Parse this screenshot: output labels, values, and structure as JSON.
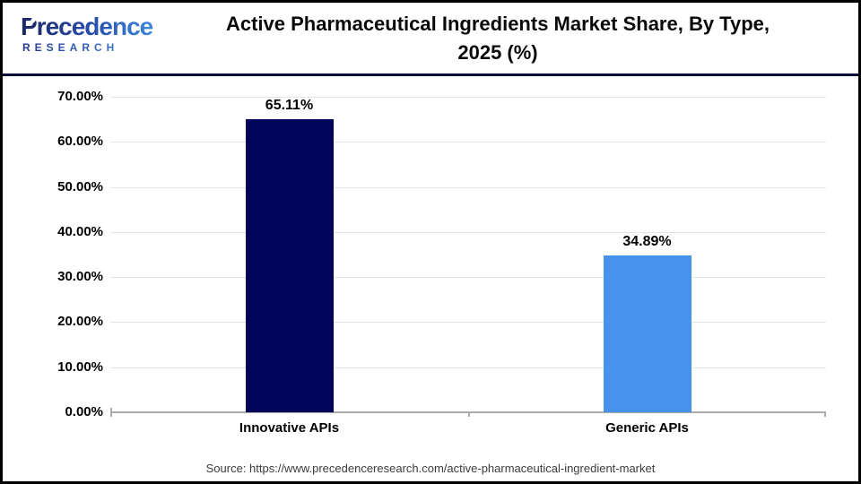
{
  "header": {
    "logo": {
      "brand": "Precedence",
      "sub": "RESEARCH"
    },
    "title_line1": "Active Pharmaceutical Ingredients Market Share, By Type,",
    "title_line2": "2025 (%)"
  },
  "chart_data": {
    "type": "bar",
    "title": "Active Pharmaceutical Ingredients Market Share, By Type, 2025 (%)",
    "categories": [
      "Innovative APIs",
      "Generic APIs"
    ],
    "values": [
      65.11,
      34.89
    ],
    "value_labels": [
      "65.11%",
      "34.89%"
    ],
    "bar_colors": [
      "#03055a",
      "#4793ec"
    ],
    "xlabel": "",
    "ylabel": "",
    "ylim": [
      0,
      70
    ],
    "ytick_step": 10,
    "ytick_labels": [
      "0.00%",
      "10.00%",
      "20.00%",
      "30.00%",
      "40.00%",
      "50.00%",
      "60.00%",
      "70.00%"
    ],
    "grid": true,
    "legend": false
  },
  "footer": {
    "source": "Source: https://www.precedenceresearch.com/active-pharmaceutical-ingredient-market"
  },
  "colors": {
    "header_rule": "#050e3d",
    "gridline": "#e3e3e3",
    "axis": "#ababab",
    "logo_dark": "#1c2663",
    "logo_light": "#3f8ce0",
    "text": "#000000",
    "source_text": "#3c3c3c"
  }
}
